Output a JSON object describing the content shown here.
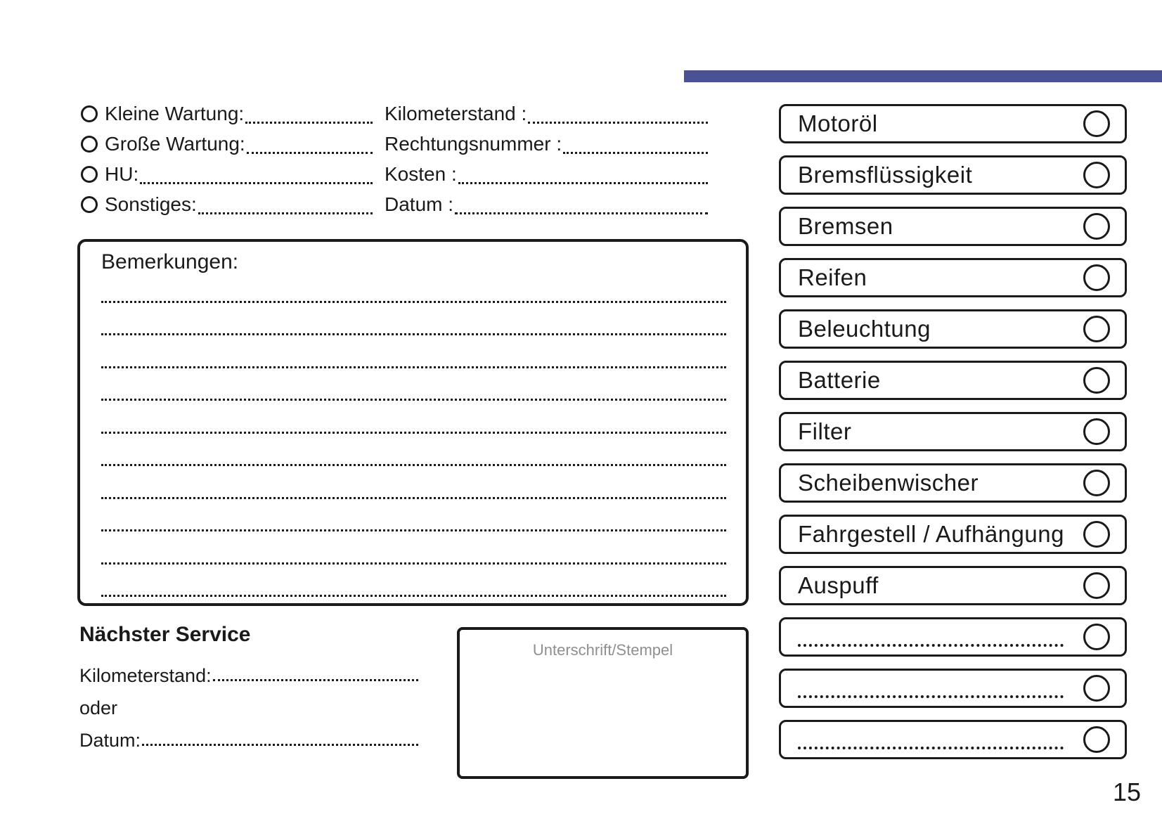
{
  "colors": {
    "accent_bar": "#4a5295",
    "ink": "#1a1a1a",
    "signature_placeholder": "#8f8f8f"
  },
  "page_number": "15",
  "service_type": {
    "options": [
      {
        "label": "Kleine Wartung:"
      },
      {
        "label": "Große Wartung:"
      },
      {
        "label": "HU:"
      },
      {
        "label": "Sonstiges:"
      }
    ]
  },
  "record_fields": {
    "rows": [
      {
        "label": "Kilometerstand :"
      },
      {
        "label": "Rechtungsnummer :"
      },
      {
        "label": "Kosten :"
      },
      {
        "label": "Datum :"
      }
    ]
  },
  "remarks": {
    "title": "Bemerkungen:",
    "blank_line_count": 10
  },
  "next_service": {
    "title": "Nächster Service",
    "kilometerstand_label": "Kilometerstand:",
    "or_label": "oder",
    "datum_label": "Datum:"
  },
  "signature": {
    "placeholder": "Unterschrift/Stempel"
  },
  "checklist": {
    "items": [
      {
        "label": "Motoröl",
        "blank": false
      },
      {
        "label": "Bremsflüssigkeit",
        "blank": false
      },
      {
        "label": "Bremsen",
        "blank": false
      },
      {
        "label": "Reifen",
        "blank": false
      },
      {
        "label": "Beleuchtung",
        "blank": false
      },
      {
        "label": "Batterie",
        "blank": false
      },
      {
        "label": "Filter",
        "blank": false
      },
      {
        "label": "Scheibenwischer",
        "blank": false
      },
      {
        "label": "Fahrgestell / Aufhängung",
        "blank": false
      },
      {
        "label": "Auspuff",
        "blank": false
      },
      {
        "label": "",
        "blank": true
      },
      {
        "label": "",
        "blank": true
      },
      {
        "label": "",
        "blank": true
      }
    ]
  }
}
